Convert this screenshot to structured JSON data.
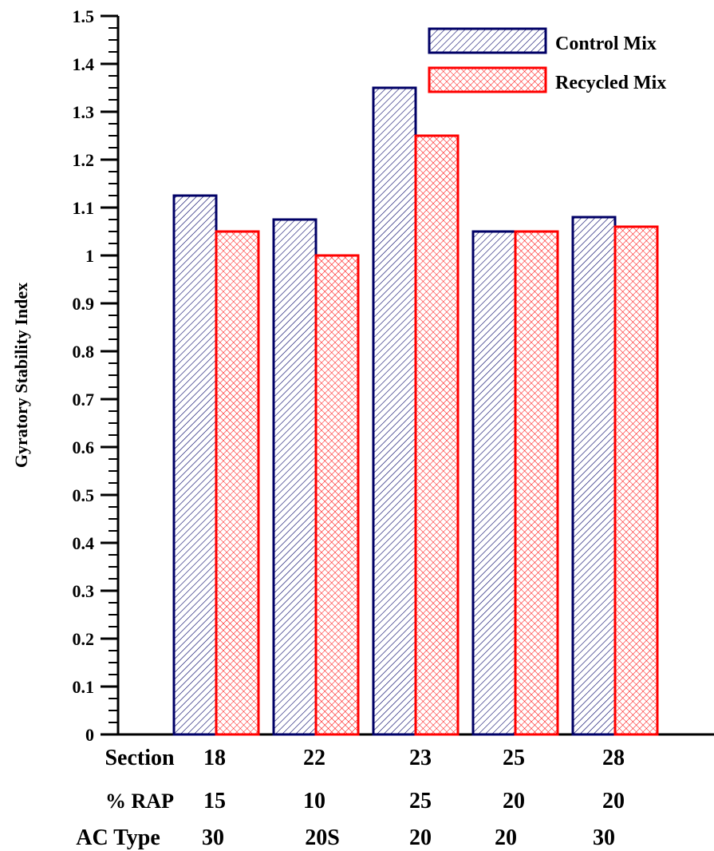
{
  "chart_data": {
    "type": "bar",
    "ylabel": "Gyratory Stability Index",
    "ylim": [
      0,
      1.5
    ],
    "yticks": [
      "0",
      "0.1",
      "0.2",
      "0.3",
      "0.4",
      "0.5",
      "0.6",
      "0.7",
      "0.8",
      "0.9",
      "1",
      "1.1",
      "1.2",
      "1.3",
      "1.4",
      "1.5"
    ],
    "categories": [
      "18",
      "22",
      "23",
      "25",
      "28"
    ],
    "series": [
      {
        "name": "Control Mix",
        "values": [
          1.125,
          1.075,
          1.35,
          1.05,
          1.08
        ],
        "color": "#000066",
        "fill": "diagonal-hatch"
      },
      {
        "name": "Recycled Mix",
        "values": [
          1.05,
          1.0,
          1.25,
          1.05,
          1.06
        ],
        "color": "#ff0000",
        "fill": "crosshatch"
      }
    ],
    "legend_position": "top-right",
    "grid": false,
    "table": {
      "rows": [
        {
          "label": "Section",
          "values": [
            "18",
            "22",
            "23",
            "25",
            "28"
          ]
        },
        {
          "label": "% RAP",
          "values": [
            "15",
            "10",
            "25",
            "20",
            "20"
          ]
        },
        {
          "label": "AC Type",
          "values": [
            "30",
            "20S",
            "20",
            "20",
            "30"
          ]
        }
      ]
    }
  }
}
